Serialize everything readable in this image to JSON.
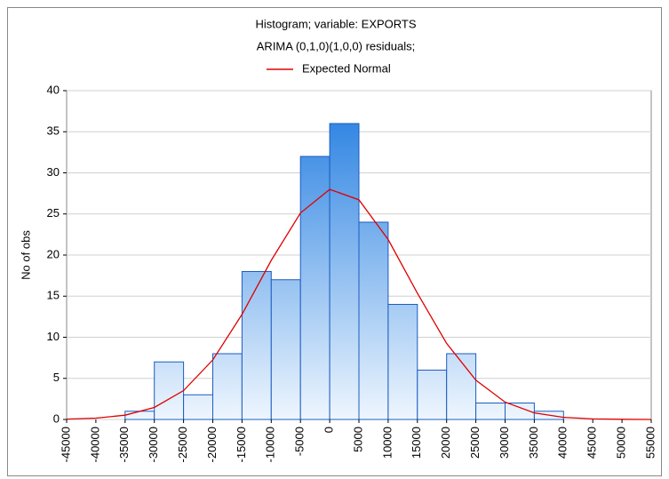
{
  "chart_data": {
    "type": "histogram",
    "title": "Histogram; variable: EXPORTS",
    "subtitle": "ARIMA (0,1,0)(1,0,0) residuals;",
    "ylabel": "No of obs",
    "bins": [
      -45000,
      -40000,
      -35000,
      -30000,
      -25000,
      -20000,
      -15000,
      -10000,
      -5000,
      0,
      5000,
      10000,
      15000,
      20000,
      25000,
      30000,
      35000,
      40000,
      45000,
      50000,
      55000
    ],
    "values": [
      0,
      0,
      1,
      7,
      3,
      8,
      18,
      17,
      32,
      36,
      24,
      14,
      6,
      8,
      2,
      2,
      1,
      0,
      0,
      0
    ],
    "color": "#1f7be0",
    "series": [
      {
        "name": "Expected Normal",
        "color": "#e00000",
        "x": [
          -45000,
          -40000,
          -35000,
          -30000,
          -25000,
          -20000,
          -15000,
          -10000,
          -5000,
          0,
          5000,
          10000,
          15000,
          20000,
          25000,
          30000,
          35000,
          40000,
          45000,
          50000,
          55000
        ],
        "values": [
          0.04,
          0.16,
          0.52,
          1.46,
          3.51,
          7.24,
          12.78,
          19.35,
          25.12,
          27.99,
          26.72,
          21.89,
          15.36,
          9.25,
          4.78,
          2.11,
          0.8,
          0.26,
          0.07,
          0.02,
          0
        ]
      }
    ],
    "xlim": [
      -45000,
      55000
    ],
    "xticks": [
      -45000,
      -40000,
      -35000,
      -30000,
      -25000,
      -20000,
      -15000,
      -10000,
      -5000,
      0,
      5000,
      10000,
      15000,
      20000,
      25000,
      30000,
      35000,
      40000,
      45000,
      50000,
      55000
    ],
    "ylim": [
      0,
      40
    ],
    "yticks": [
      0,
      5,
      10,
      15,
      20,
      25,
      30,
      35,
      40
    ],
    "grid": true
  }
}
